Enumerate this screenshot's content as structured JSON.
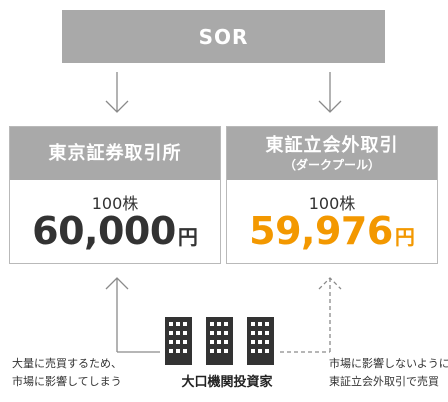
{
  "sor": {
    "label": "SOR"
  },
  "venues": [
    {
      "name": "東京証券取引所",
      "sub": "",
      "qty": "100株",
      "price": "60,000",
      "currency": "円",
      "highlight": false
    },
    {
      "name": "東証立会外取引",
      "sub": "（ダークプール）",
      "qty": "100株",
      "price": "59,976",
      "currency": "円",
      "highlight": true
    }
  ],
  "investor": {
    "label": "大口機関投資家"
  },
  "notes": {
    "left": [
      "大量に売買するため、",
      "市場に影響してしまう"
    ],
    "right": [
      "市場に影響しないように",
      "東証立会外取引で売買"
    ]
  },
  "colors": {
    "box_gray": "#a9a9a9",
    "highlight_orange": "#f39800",
    "line_gray": "#8a8a8a"
  }
}
